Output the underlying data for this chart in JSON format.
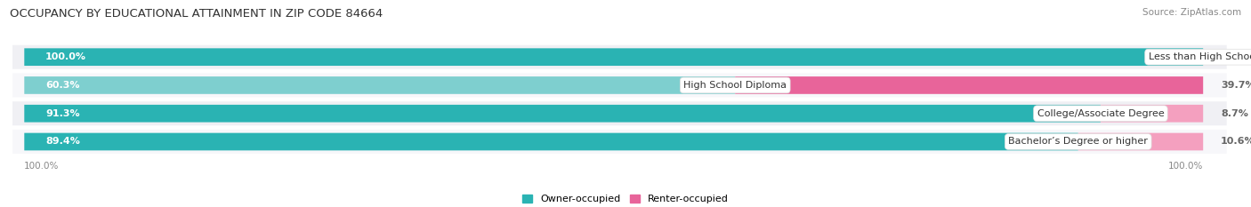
{
  "title": "OCCUPANCY BY EDUCATIONAL ATTAINMENT IN ZIP CODE 84664",
  "source": "Source: ZipAtlas.com",
  "categories": [
    "Less than High School",
    "High School Diploma",
    "College/Associate Degree",
    "Bachelor’s Degree or higher"
  ],
  "owner_pct": [
    100.0,
    60.3,
    91.3,
    89.4
  ],
  "renter_pct": [
    0.0,
    39.7,
    8.7,
    10.6
  ],
  "owner_color_dark": "#2ab3b3",
  "owner_color_light": "#7ecfcf",
  "renter_color_dark": "#e8649a",
  "renter_color_light": "#f4a0bf",
  "bar_bg_color": "#e0e0e8",
  "row_bg_color": "#efefef",
  "figsize": [
    14.06,
    2.33
  ],
  "dpi": 100,
  "axis_label_left": "100.0%",
  "axis_label_right": "100.0%",
  "label_fontsize": 8.0,
  "cat_fontsize": 8.0,
  "title_fontsize": 9.5,
  "source_fontsize": 7.5
}
